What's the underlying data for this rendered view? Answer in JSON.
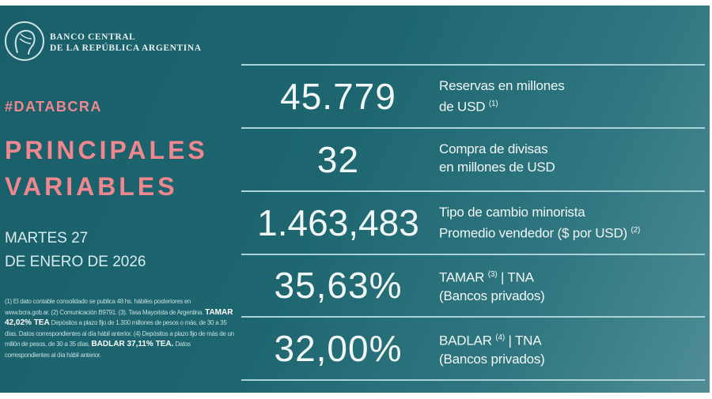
{
  "header": {
    "bank_line1": "BANCO CENTRAL",
    "bank_line2": "DE LA REPÚBLICA ARGENTINA",
    "hashtag": "#DATABCRA",
    "title_line1": "PRINCIPALES",
    "title_line2": "VARIABLES",
    "date_line1": "MARTES 27",
    "date_line2": "DE ENERO DE 2026"
  },
  "colors": {
    "background": "#1d6670",
    "accent": "#f0878f",
    "divider": "#a9d3d8"
  },
  "footnotes": {
    "part1": "(1) El dato contable consolidado se publica 48 hs. hábiles posteriores en www.bcra.gob.ar. (2) Comunicación B9791. (3). Tasa Mayorista de Argentina.",
    "tamar_bold": "TAMAR 42,02% TEA",
    "part2": "Depósitos a plazo fijo de 1.300 millones de pesos o más, de 30 a 35 días. Datos correspondientes al día hábil anterior. (4) Depósitos a plazo fijo de más de un millón de pesos, de 30 a 35 días.",
    "badlar_bold": "BADLAR 37,11% TEA.",
    "part3": "Datos correspondientes al día hábil anterior."
  },
  "variables": [
    {
      "value": "45.779",
      "label1": "Reservas en millones",
      "label2": "de USD",
      "note": "(1)"
    },
    {
      "value": "32",
      "label1": "Compra de divisas",
      "label2": "en millones de USD",
      "note": ""
    },
    {
      "value": "1.463,483",
      "label1": "Tipo de cambio minorista",
      "label2": "Promedio vendedor ($ por USD)",
      "note": "(2)"
    },
    {
      "value": "35,63%",
      "label1a": "TAMAR",
      "note": "(3)",
      "label1b": "| TNA",
      "label2": "(Bancos privados)"
    },
    {
      "value": "32,00%",
      "label1a": "BADLAR",
      "note": "(4)",
      "label1b": "| TNA",
      "label2": "(Bancos privados)"
    }
  ]
}
